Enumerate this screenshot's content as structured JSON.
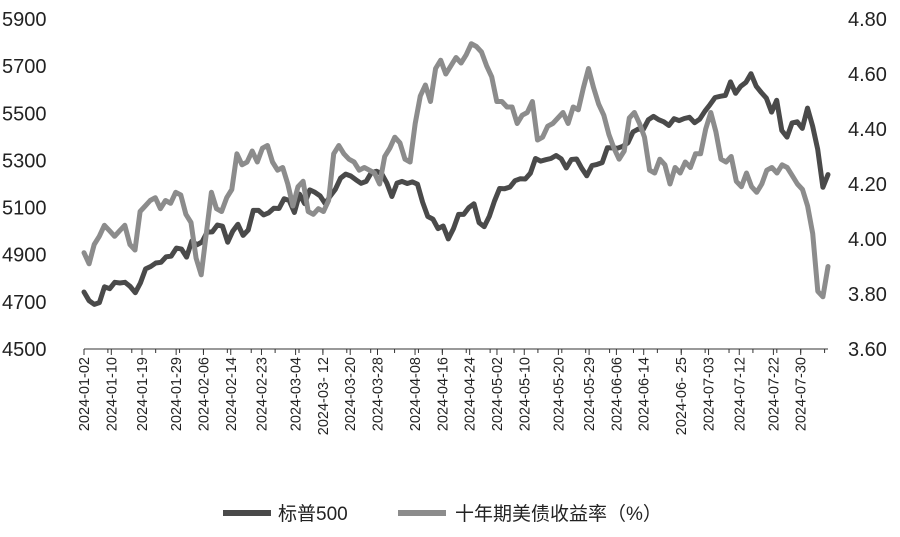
{
  "chart_data": {
    "type": "line",
    "title": "",
    "xlabel": "",
    "ylabel_left": "",
    "ylabel_right": "",
    "ylim_left": [
      4500,
      5900
    ],
    "ylim_right": [
      3.6,
      4.8
    ],
    "y_ticks_left": [
      "4500",
      "4700",
      "4900",
      "5100",
      "5300",
      "5500",
      "5700",
      "5900"
    ],
    "y_ticks_right": [
      "3.60",
      "3.80",
      "4.00",
      "4.20",
      "4.40",
      "4.60",
      "4.80"
    ],
    "x_tick_labels": [
      "2024-01-02",
      "2024-01-10",
      "2024-01-19",
      "2024-01-29",
      "2024-02-06",
      "2024-02-14",
      "2024-02-23",
      "2024-03-04",
      "2024-03-12",
      "2024-03-20",
      "2024-03-28",
      "2024-04-08",
      "2024-04-16",
      "2024-04-24",
      "2024-05-02",
      "2024-05-10",
      "2024-05-20",
      "2024-05-29",
      "2024-06-06",
      "2024-06-14",
      "2024-06-25",
      "2024-07-03",
      "2024-07-12",
      "2024-07-22",
      "2024-07-30"
    ],
    "x_tick_display": [
      "2024-01-02",
      "2024-01-10",
      "2024-01-19",
      "2024-01-29",
      "2024-02-06",
      "2024-02-14",
      "2024-02-23",
      "2024-03-04",
      "2024-03- 12",
      "2024-03-20",
      "2024-03-28",
      "2024-04-08",
      "2024-04-16",
      "2024-04-24",
      "2024-05-02",
      "2024-05-10",
      "2024-05-20",
      "2024-05-29",
      "2024-06-06",
      "2024-06-14",
      "2024-06- 25",
      "2024-07-03",
      "2024-07-12",
      "2024-07-22",
      "2024-07-30"
    ],
    "x_start": "2024-01-02",
    "x_end": "2024-08-07",
    "legend_position": "bottom",
    "grid": false,
    "series": [
      {
        "name": "标普500",
        "axis": "left",
        "color": "#4a4a4a",
        "values": [
          4742,
          4705,
          4689,
          4697,
          4764,
          4756,
          4783,
          4780,
          4783,
          4765,
          4739,
          4780,
          4840,
          4850,
          4865,
          4868,
          4891,
          4894,
          4928,
          4924,
          4890,
          4958,
          4942,
          4954,
          4996,
          4997,
          5026,
          5021,
          4953,
          5000,
          5029,
          4982,
          5005,
          5088,
          5088,
          5069,
          5078,
          5097,
          5096,
          5137,
          5130,
          5079,
          5157,
          5117,
          5175,
          5165,
          5150,
          5117,
          5149,
          5178,
          5225,
          5242,
          5234,
          5218,
          5203,
          5211,
          5248,
          5254,
          5244,
          5205,
          5147,
          5204,
          5211,
          5202,
          5209,
          5199,
          5123,
          5062,
          5051,
          5011,
          5022,
          4967,
          5010,
          5071,
          5071,
          5100,
          5116,
          5036,
          5019,
          5064,
          5128,
          5181,
          5180,
          5187,
          5214,
          5222,
          5221,
          5246,
          5308,
          5297,
          5303,
          5308,
          5321,
          5307,
          5268,
          5304,
          5306,
          5267,
          5235,
          5278,
          5283,
          5291,
          5354,
          5353,
          5352,
          5360,
          5375,
          5421,
          5433,
          5431,
          5473,
          5487,
          5473,
          5464,
          5448,
          5477,
          5469,
          5478,
          5483,
          5460,
          5475,
          5509,
          5537,
          5567,
          5572,
          5576,
          5633,
          5585,
          5615,
          5631,
          5668,
          5615,
          5588,
          5564,
          5505,
          5555,
          5427,
          5399,
          5459,
          5464,
          5436,
          5522,
          5446,
          5347,
          5186,
          5240
        ]
      },
      {
        "name": "十年期美债收益率（%）",
        "axis": "right",
        "color": "#8c8c8c",
        "values": [
          3.95,
          3.91,
          3.98,
          4.01,
          4.05,
          4.03,
          4.01,
          4.03,
          4.05,
          3.98,
          3.96,
          4.1,
          4.12,
          4.14,
          4.15,
          4.11,
          4.14,
          4.13,
          4.17,
          4.16,
          4.09,
          4.06,
          3.93,
          3.87,
          4.02,
          4.17,
          4.11,
          4.1,
          4.15,
          4.18,
          4.31,
          4.27,
          4.28,
          4.32,
          4.28,
          4.33,
          4.34,
          4.28,
          4.25,
          4.26,
          4.2,
          4.12,
          4.19,
          4.21,
          4.1,
          4.09,
          4.11,
          4.1,
          4.14,
          4.31,
          4.34,
          4.31,
          4.29,
          4.28,
          4.25,
          4.26,
          4.25,
          4.24,
          4.2,
          4.3,
          4.33,
          4.37,
          4.35,
          4.29,
          4.28,
          4.42,
          4.52,
          4.56,
          4.5,
          4.62,
          4.65,
          4.6,
          4.63,
          4.66,
          4.64,
          4.67,
          4.71,
          4.7,
          4.68,
          4.63,
          4.59,
          4.5,
          4.5,
          4.48,
          4.48,
          4.42,
          4.45,
          4.46,
          4.5,
          4.36,
          4.37,
          4.41,
          4.42,
          4.44,
          4.46,
          4.42,
          4.48,
          4.47,
          4.55,
          4.62,
          4.55,
          4.49,
          4.45,
          4.38,
          4.33,
          4.29,
          4.32,
          4.44,
          4.46,
          4.42,
          4.37,
          4.25,
          4.24,
          4.29,
          4.27,
          4.2,
          4.26,
          4.24,
          4.28,
          4.26,
          4.31,
          4.31,
          4.4,
          4.46,
          4.39,
          4.29,
          4.28,
          4.3,
          4.21,
          4.19,
          4.24,
          4.19,
          4.17,
          4.2,
          4.25,
          4.26,
          4.24,
          4.27,
          4.26,
          4.23,
          4.2,
          4.18,
          4.12,
          4.02,
          3.81,
          3.79,
          3.9
        ]
      }
    ]
  }
}
